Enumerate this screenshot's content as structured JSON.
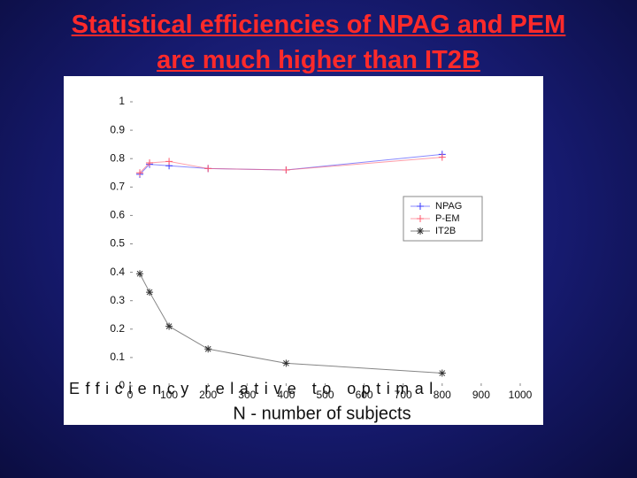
{
  "chart_data": {
    "type": "line",
    "title": "Statistical efficiencies of NPAG and PEM are much higher than IT2B",
    "xlabel": "N - number of subjects",
    "ylabel": "Efficiency relative to optimal",
    "x": [
      25,
      50,
      100,
      200,
      400,
      800
    ],
    "series": [
      {
        "name": "NPAG",
        "color": "#3a3aff",
        "values": [
          0.745,
          0.78,
          0.775,
          0.765,
          0.76,
          0.815
        ]
      },
      {
        "name": "P-EM",
        "color": "#ff5a6e",
        "values": [
          0.75,
          0.785,
          0.79,
          0.765,
          0.76,
          0.805
        ]
      },
      {
        "name": "IT2B",
        "color": "#333333",
        "values": [
          0.395,
          0.33,
          0.21,
          0.13,
          0.08,
          0.045
        ]
      }
    ],
    "xlim": [
      0,
      1000
    ],
    "xticks": [
      0,
      100,
      200,
      300,
      400,
      500,
      600,
      700,
      800,
      900,
      1000
    ],
    "ylim": [
      0,
      1
    ],
    "yticks": [
      0,
      0.1,
      0.2,
      0.3,
      0.4,
      0.5,
      0.6,
      0.7,
      0.8,
      0.9,
      1
    ],
    "legend": "upper-right"
  }
}
